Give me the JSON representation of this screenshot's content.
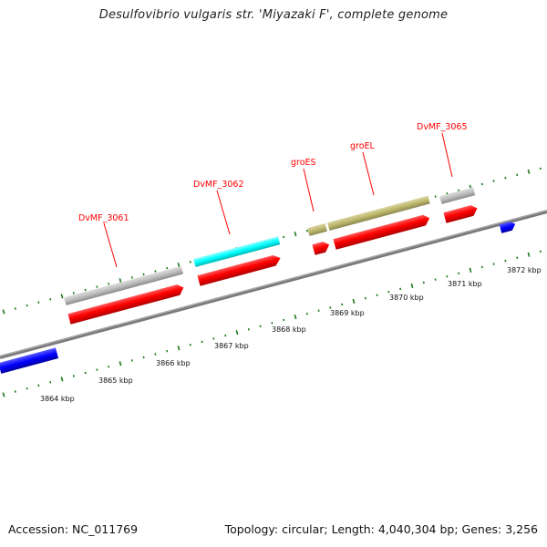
{
  "title": "Desulfovibrio vulgaris str. 'Miyazaki F', complete genome",
  "accession": "Accession: NC_011769",
  "summary": "Topology: circular; Length: 4,040,304 bp; Genes: 3,256",
  "colors": {
    "backbone": "#808080",
    "tick_green": "#1a7a1a",
    "label_red": "#ff0000",
    "cds_red": "#ff0000",
    "gene_gray": "#bdbdbd",
    "gene_cyan": "#00ffff",
    "gene_khaki": "#bdb76b",
    "gene_blue": "#0000ff"
  },
  "scale_labels": [
    "3864 kbp",
    "3865 kbp",
    "3866 kbp",
    "3867 kbp",
    "3868 kbp",
    "3869 kbp",
    "3870 kbp",
    "3871 kbp",
    "3872 kbp"
  ],
  "gene_labels": [
    "DvMF_3061",
    "DvMF_3062",
    "groES",
    "groEL",
    "DvMF_3065"
  ]
}
